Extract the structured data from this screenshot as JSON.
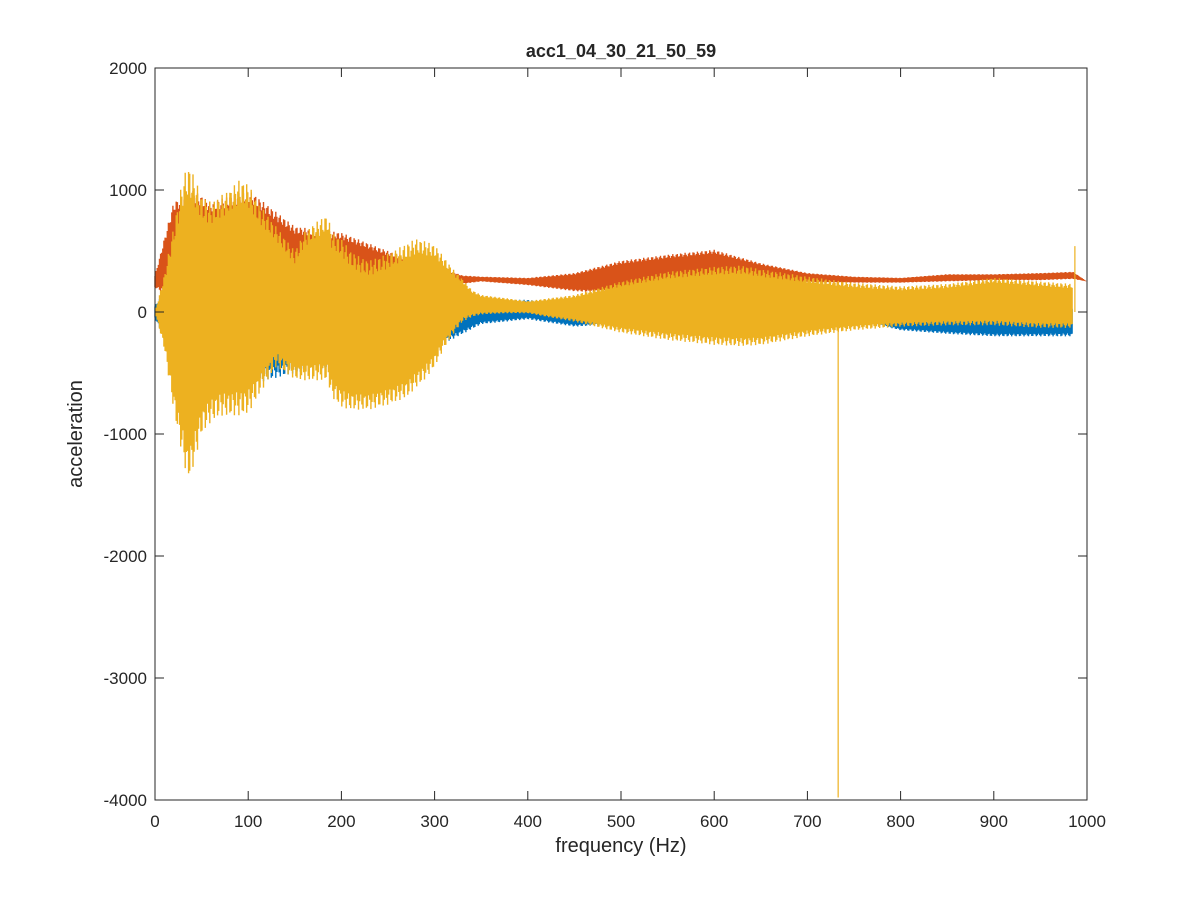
{
  "chart_data": {
    "type": "line",
    "title": "acc1_04_30_21_50_59",
    "xlabel": "frequency (Hz)",
    "ylabel": "acceleration",
    "xlim": [
      0,
      1000
    ],
    "ylim": [
      -4000,
      2000
    ],
    "xticks": [
      0,
      100,
      200,
      300,
      400,
      500,
      600,
      700,
      800,
      900,
      1000
    ],
    "yticks": [
      -4000,
      -3000,
      -2000,
      -1000,
      0,
      1000,
      2000
    ],
    "xtick_labels": [
      "0",
      "100",
      "200",
      "300",
      "400",
      "500",
      "600",
      "700",
      "800",
      "900",
      "1000"
    ],
    "ytick_labels": [
      "-4000",
      "-3000",
      "-2000",
      "-1000",
      "0",
      "1000",
      "2000"
    ],
    "grid": false,
    "legend": "none",
    "series": [
      {
        "color": "#0072BD",
        "envelope_x": [
          0,
          20,
          40,
          60,
          100,
          150,
          200,
          300,
          350,
          400,
          450,
          500,
          550,
          600,
          650,
          700,
          750,
          800,
          850,
          900,
          950,
          985
        ],
        "upper": [
          50,
          300,
          600,
          400,
          500,
          400,
          350,
          200,
          100,
          100,
          60,
          40,
          30,
          20,
          10,
          10,
          0,
          0,
          10,
          10,
          20,
          50
        ],
        "lower": [
          -50,
          -400,
          -600,
          -500,
          -600,
          -500,
          -450,
          -300,
          -100,
          -60,
          -120,
          -100,
          -60,
          -30,
          -20,
          -20,
          -60,
          -150,
          -180,
          -200,
          -200,
          -200
        ]
      },
      {
        "color": "#D95319",
        "envelope_x": [
          0,
          20,
          40,
          60,
          100,
          150,
          200,
          250,
          300,
          330,
          350,
          400,
          450,
          500,
          550,
          600,
          650,
          700,
          750,
          800,
          850,
          900,
          950,
          985,
          1000
        ],
        "upper": [
          300,
          900,
          1000,
          900,
          1000,
          700,
          650,
          500,
          380,
          300,
          290,
          280,
          320,
          420,
          470,
          510,
          400,
          320,
          290,
          280,
          310,
          310,
          320,
          330,
          250
        ],
        "lower": [
          200,
          100,
          50,
          100,
          50,
          100,
          100,
          120,
          160,
          230,
          250,
          220,
          170,
          150,
          180,
          200,
          240,
          240,
          240,
          240,
          250,
          260,
          260,
          270,
          250
        ]
      },
      {
        "color": "#EDB120",
        "envelope_x": [
          0,
          10,
          20,
          30,
          35,
          40,
          50,
          60,
          70,
          80,
          90,
          100,
          110,
          130,
          150,
          160,
          170,
          185,
          190,
          200,
          210,
          220,
          230,
          250,
          270,
          280,
          290,
          300,
          310,
          320,
          330,
          340,
          350,
          380,
          400,
          420,
          450,
          500,
          550,
          600,
          630,
          650,
          700,
          750,
          800,
          850,
          900,
          950,
          985
        ],
        "upper": [
          0,
          300,
          700,
          1100,
          1200,
          1150,
          950,
          900,
          950,
          1000,
          1080,
          1050,
          900,
          700,
          500,
          650,
          720,
          800,
          650,
          600,
          500,
          450,
          420,
          480,
          560,
          600,
          580,
          550,
          450,
          350,
          270,
          180,
          140,
          110,
          90,
          110,
          140,
          250,
          330,
          370,
          380,
          350,
          290,
          240,
          210,
          230,
          280,
          250,
          230
        ],
        "lower": [
          0,
          -300,
          -800,
          -1200,
          -1380,
          -1300,
          -1000,
          -900,
          -850,
          -850,
          -850,
          -830,
          -700,
          -450,
          -550,
          -560,
          -560,
          -560,
          -700,
          -780,
          -800,
          -800,
          -800,
          -760,
          -700,
          -620,
          -550,
          -450,
          -300,
          -180,
          -80,
          -40,
          -20,
          -10,
          -10,
          -40,
          -80,
          -170,
          -230,
          -270,
          -280,
          -270,
          -200,
          -150,
          -120,
          -110,
          -110,
          -130,
          -130
        ]
      }
    ],
    "annotations": [
      {
        "series": 2,
        "x": 733,
        "y": -3980,
        "kind": "spike"
      },
      {
        "series": 2,
        "x": 987,
        "y": 540,
        "kind": "spike"
      }
    ]
  }
}
